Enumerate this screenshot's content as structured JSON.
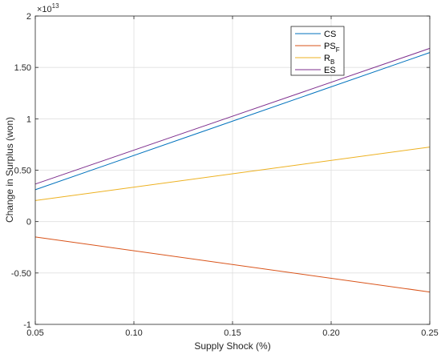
{
  "chart_data": {
    "type": "line",
    "xlabel": "Supply Shock (%)",
    "ylabel": "Change in Surplus (won)",
    "xlim": [
      0.05,
      0.25
    ],
    "ylim": [
      -1,
      2
    ],
    "y_multiplier_label": "×10",
    "y_multiplier_exp": "13",
    "x_ticks": [
      0.05,
      0.1,
      0.15,
      0.2,
      0.25
    ],
    "x_tick_labels": [
      "0.05",
      "0.10",
      "0.15",
      "0.20",
      "0.25"
    ],
    "y_ticks": [
      -1,
      -0.5,
      0,
      0.5,
      1,
      1.5,
      2
    ],
    "y_tick_labels": [
      "-1",
      "-0.50",
      "0",
      "0.50",
      "1",
      "1.50",
      "2"
    ],
    "grid": true,
    "legend_position": "top-right",
    "series": [
      {
        "name": "CS",
        "label_main": "CS",
        "label_sub": "",
        "color": "#0072BD",
        "x": [
          0.05,
          0.25
        ],
        "y": [
          0.31,
          1.645
        ]
      },
      {
        "name": "PS_F",
        "label_main": "PS",
        "label_sub": "F",
        "color": "#D95319",
        "x": [
          0.05,
          0.25
        ],
        "y": [
          -0.15,
          -0.685
        ]
      },
      {
        "name": "R_B",
        "label_main": "R",
        "label_sub": "B",
        "color": "#EDB120",
        "x": [
          0.05,
          0.25
        ],
        "y": [
          0.205,
          0.725
        ]
      },
      {
        "name": "ES",
        "label_main": "ES",
        "label_sub": "",
        "color": "#7E2F8E",
        "x": [
          0.05,
          0.25
        ],
        "y": [
          0.365,
          1.685
        ]
      }
    ]
  }
}
